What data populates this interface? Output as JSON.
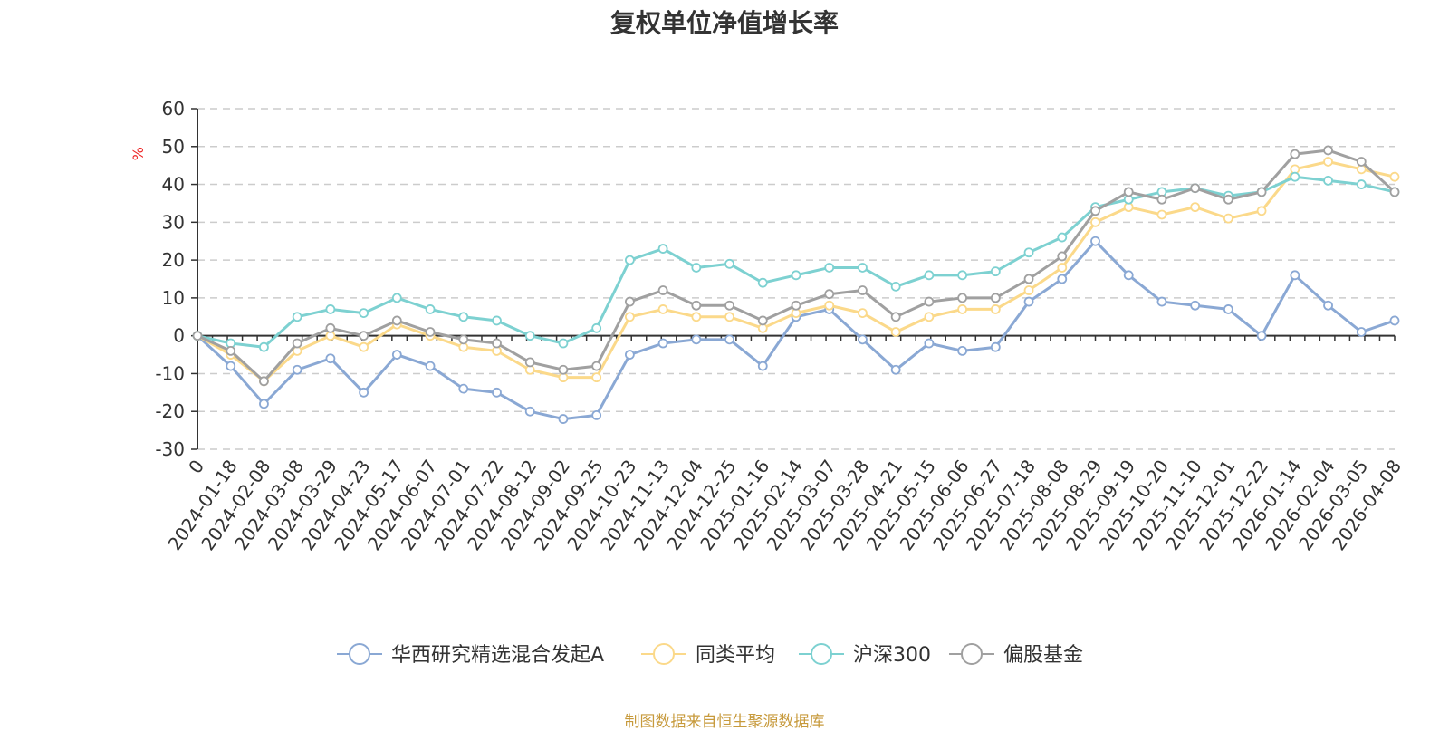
{
  "chart_data": {
    "type": "line",
    "title": "复权单位净值增长率",
    "ylabel": "%",
    "ylim": [
      -30,
      60
    ],
    "yticks": [
      -30,
      -20,
      -10,
      0,
      10,
      20,
      30,
      40,
      50,
      60
    ],
    "grid": true,
    "legend_position": "bottom",
    "x_tick_labels": [
      "0",
      "2024-01-18",
      "2024-02-08",
      "2024-03-08",
      "2024-03-29",
      "2024-04-23",
      "2024-05-17",
      "2024-06-07",
      "2024-07-01",
      "2024-07-22",
      "2024-08-12",
      "2024-09-02",
      "2024-09-25",
      "2024-10-23",
      "2024-11-13",
      "2024-12-04",
      "2024-12-25",
      "2025-01-16",
      "2025-02-14",
      "2025-03-07",
      "2025-03-28",
      "2025-04-21",
      "2025-05-15",
      "2025-06-06",
      "2025-06-27",
      "2025-07-18",
      "2025-08-08",
      "2025-08-29",
      "2025-09-19",
      "2025-10-20",
      "2025-11-10",
      "2025-12-01",
      "2025-12-22",
      "2026-01-14",
      "2026-02-04",
      "2026-03-05",
      "2026-04-08"
    ],
    "series": [
      {
        "name": "华西研究精选混合发起A",
        "color": "#8aa8d4",
        "values": [
          0,
          -8,
          -18,
          -9,
          -6,
          -15,
          -5,
          -8,
          -14,
          -15,
          -20,
          -22,
          -21,
          -5,
          -2,
          -1,
          -1,
          -8,
          5,
          7,
          -1,
          -9,
          -2,
          -4,
          -3,
          9,
          15,
          25,
          16,
          9,
          8,
          7,
          0,
          16,
          8,
          1,
          4
        ]
      },
      {
        "name": "同类平均",
        "color": "#fbd98a",
        "values": [
          0,
          -5,
          -12,
          -4,
          0,
          -3,
          3,
          0,
          -3,
          -4,
          -9,
          -11,
          -11,
          5,
          7,
          5,
          5,
          2,
          6,
          8,
          6,
          1,
          5,
          7,
          7,
          12,
          18,
          30,
          34,
          32,
          34,
          31,
          33,
          44,
          46,
          44,
          42
        ]
      },
      {
        "name": "沪深300",
        "color": "#7dd1d1",
        "values": [
          0,
          -2,
          -3,
          5,
          7,
          6,
          10,
          7,
          5,
          4,
          0,
          -2,
          2,
          20,
          23,
          18,
          19,
          14,
          16,
          18,
          18,
          13,
          16,
          16,
          17,
          22,
          26,
          34,
          36,
          38,
          39,
          37,
          38,
          42,
          41,
          40,
          38
        ]
      },
      {
        "name": "偏股基金",
        "color": "#a0a0a0",
        "values": [
          0,
          -4,
          -12,
          -2,
          2,
          0,
          4,
          1,
          -1,
          -2,
          -7,
          -9,
          -8,
          9,
          12,
          8,
          8,
          4,
          8,
          11,
          12,
          5,
          9,
          10,
          10,
          15,
          21,
          33,
          38,
          36,
          39,
          36,
          38,
          48,
          49,
          46,
          38
        ]
      }
    ]
  },
  "source_note": "制图数据来自恒生聚源数据库"
}
